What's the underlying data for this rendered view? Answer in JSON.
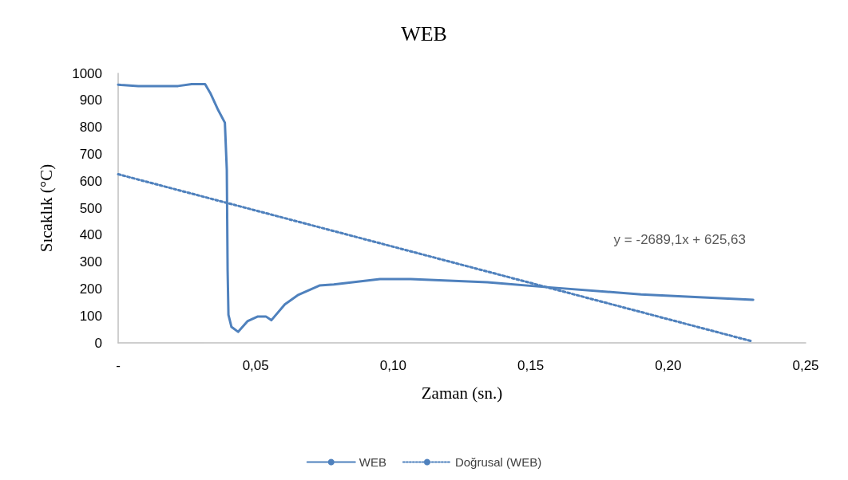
{
  "chart_data": {
    "type": "line",
    "title": "WEB",
    "xlabel": "Zaman (sn.)",
    "ylabel": "Sıcaklık (°C)",
    "xlim": [
      0,
      0.25
    ],
    "xticks": [
      {
        "value": 0,
        "label": "-"
      },
      {
        "value": 0.05,
        "label": "0,05"
      },
      {
        "value": 0.1,
        "label": "0,10"
      },
      {
        "value": 0.15,
        "label": "0,15"
      },
      {
        "value": 0.2,
        "label": "0,20"
      },
      {
        "value": 0.25,
        "label": "0,25"
      }
    ],
    "ylim": [
      0,
      1000
    ],
    "yticks": [
      0,
      100,
      200,
      300,
      400,
      500,
      600,
      700,
      800,
      900,
      1000
    ],
    "grid": false,
    "legend": "bottom",
    "marker": "none",
    "annotations": [
      "y = -2689,1x + 625,63"
    ],
    "series": [
      {
        "name": "WEB",
        "color": "#4f81bd",
        "line_style": "solid",
        "x": [
          0,
          0.001,
          0.0073,
          0.0218,
          0.0267,
          0.0316,
          0.0335,
          0.0364,
          0.0388,
          0.0395,
          0.0398,
          0.0401,
          0.0412,
          0.0436,
          0.047,
          0.0508,
          0.0537,
          0.0557,
          0.0606,
          0.0653,
          0.0732,
          0.0784,
          0.0952,
          0.1064,
          0.1343,
          0.1567,
          0.1901,
          0.2309
        ],
        "values": [
          958,
          957,
          953,
          953,
          960,
          960,
          927,
          863,
          817,
          642,
          266,
          104,
          59,
          41,
          80,
          98,
          98,
          84,
          143,
          177,
          213,
          217,
          237,
          237,
          225,
          206,
          180,
          160
        ]
      },
      {
        "name": "Doğrusal (WEB)",
        "color": "#4f81bd",
        "line_style": "dotted",
        "x": [
          0,
          0.23
        ],
        "values": [
          625.63,
          7.1
        ]
      }
    ]
  }
}
